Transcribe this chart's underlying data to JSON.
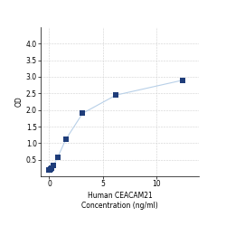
{
  "x": [
    0.0,
    0.049,
    0.098,
    0.195,
    0.391,
    0.781,
    1.563,
    3.125,
    6.25,
    12.5
  ],
  "y": [
    0.192,
    0.203,
    0.218,
    0.253,
    0.325,
    0.567,
    1.12,
    1.9,
    2.45,
    2.9
  ],
  "line_color": "#b8d0e8",
  "marker_color": "#1f3d7a",
  "marker_size": 14,
  "xlabel_line1": "Human CEACAM21",
  "xlabel_line2": "Concentration (ng/ml)",
  "ylabel": "OD",
  "xlim": [
    -0.8,
    14
  ],
  "ylim": [
    0,
    4.5
  ],
  "yticks": [
    0.5,
    1.0,
    1.5,
    2.0,
    2.5,
    3.0,
    3.5,
    4.0
  ],
  "xticks": [
    0,
    5,
    10
  ],
  "xtick_labels": [
    "0",
    "5",
    "10"
  ],
  "grid_color": "#d0d0d0",
  "background_color": "#ffffff",
  "label_fontsize": 5.5,
  "tick_fontsize": 5.5
}
